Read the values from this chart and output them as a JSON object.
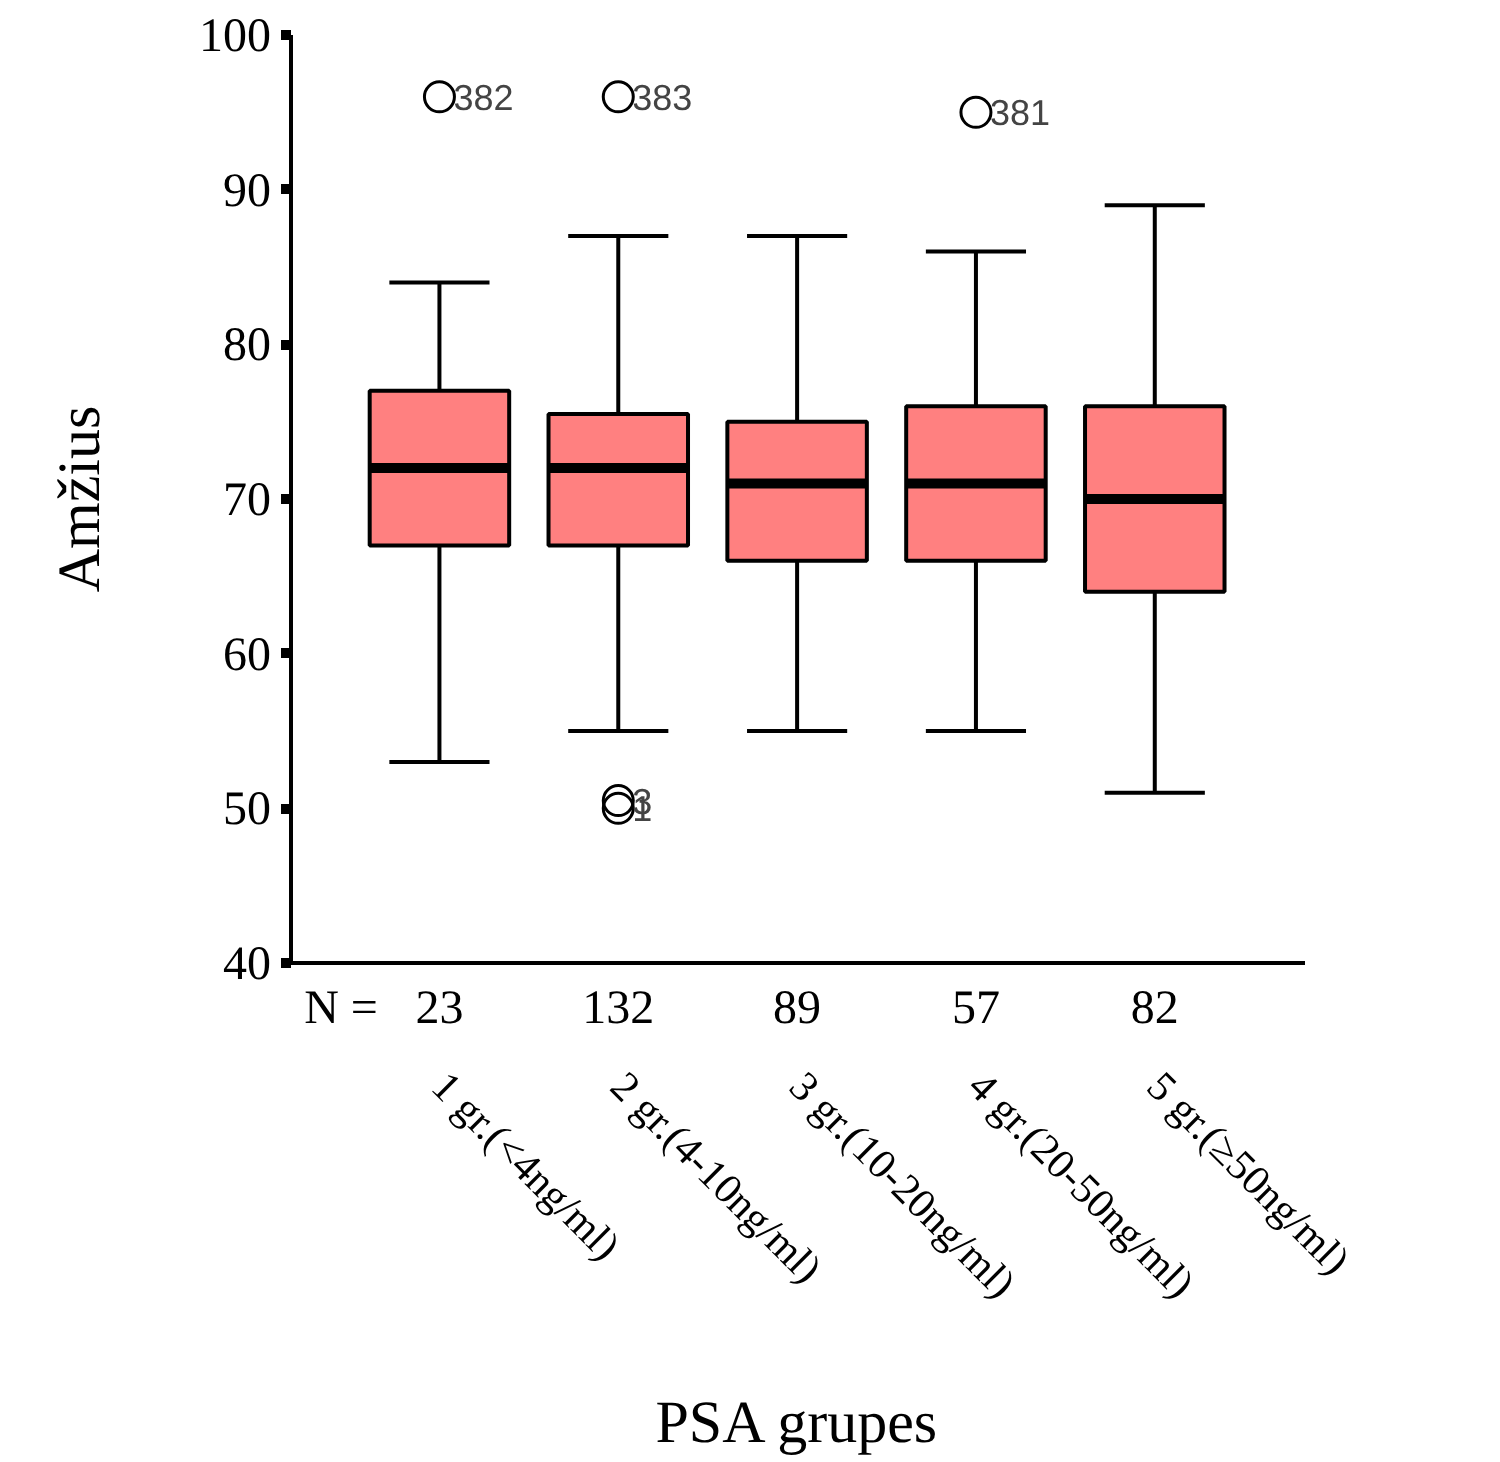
{
  "chart_data": {
    "type": "box",
    "xlabel": "PSA grupes",
    "ylabel": "Amžius",
    "categories": [
      "1 gr.(<4ng/ml)",
      "2 gr.(4-10ng/ml)",
      "3 gr.(10-20ng/ml)",
      "4 gr.(20-50ng/ml)",
      "5 gr.(≥50ng/ml)"
    ],
    "color": "#ff8080",
    "boxes": [
      {
        "low": 53,
        "q1": 67,
        "median": 72,
        "q3": 77,
        "high": 84,
        "outliers": [
          96
        ]
      },
      {
        "low": 55,
        "q1": 67,
        "median": 72,
        "q3": 75.5,
        "high": 87,
        "outliers": [
          96,
          50.5,
          50
        ]
      },
      {
        "low": 55,
        "q1": 66,
        "median": 71,
        "q3": 75,
        "high": 87
      },
      {
        "low": 55,
        "q1": 66,
        "median": 71,
        "q3": 76,
        "high": 86,
        "outliers": [
          95
        ]
      },
      {
        "low": 51,
        "q1": 64,
        "median": 70,
        "q3": 76,
        "high": 89
      }
    ],
    "ylim": [
      40,
      100
    ],
    "yticks": [
      40,
      50,
      60,
      70,
      80,
      90,
      100
    ],
    "grid": false,
    "annotations": [
      "N =",
      "23",
      "132",
      "89",
      "57",
      "82",
      "382",
      "383",
      "3",
      "1",
      "381"
    ]
  }
}
